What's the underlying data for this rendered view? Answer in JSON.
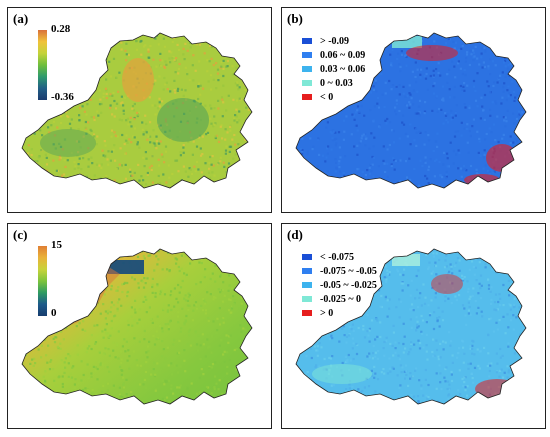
{
  "panels": {
    "a": {
      "label": "(a)",
      "colorbar": {
        "max": "0.28",
        "min": "-0.36",
        "colors": [
          "#d9713a",
          "#f0c23a",
          "#c4d33a",
          "#6fbe3c",
          "#2f9a6e",
          "#225f86",
          "#1b3b6f"
        ]
      },
      "map_palette": [
        "#b6cf3c",
        "#9ac73e",
        "#d9c441",
        "#7cb947",
        "#e0a43e",
        "#4fa05a"
      ]
    },
    "b": {
      "label": "(b)",
      "legend": [
        {
          "text": "> -0.09",
          "color": "#1a4fd6"
        },
        {
          "text": "0.06 ~ 0.09",
          "color": "#2f7ff0"
        },
        {
          "text": "0.03 ~ 0.06",
          "color": "#3db3ee"
        },
        {
          "text": "0 ~ 0.03",
          "color": "#7fe8d6"
        },
        {
          "text": "< 0",
          "color": "#e61e1e"
        }
      ],
      "map_palette": [
        "#2a6ee0",
        "#3a82ea",
        "#1f55cc",
        "#2f78e6"
      ]
    },
    "c": {
      "label": "(c)",
      "colorbar": {
        "max": "15",
        "min": "0",
        "colors": [
          "#e07f34",
          "#e9b33a",
          "#c8d33b",
          "#7dc43c",
          "#2e9b62",
          "#1d5a8a",
          "#173d6e"
        ]
      },
      "map_palette": [
        "#8ccb3e",
        "#9fd03d",
        "#7ec43e"
      ]
    },
    "d": {
      "label": "(d)",
      "legend": [
        {
          "text": "< -0.075",
          "color": "#1a4fd6"
        },
        {
          "text": "-0.075 ~ -0.05",
          "color": "#2f7ff0"
        },
        {
          "text": "-0.05 ~ -0.025",
          "color": "#3db3ee"
        },
        {
          "text": "-0.025 ~ 0",
          "color": "#7fe8d6"
        },
        {
          "text": "> 0",
          "color": "#e61e1e"
        }
      ],
      "map_palette": [
        "#4fb0ea",
        "#5cc2ef",
        "#3d94e2",
        "#67ccee"
      ]
    }
  }
}
